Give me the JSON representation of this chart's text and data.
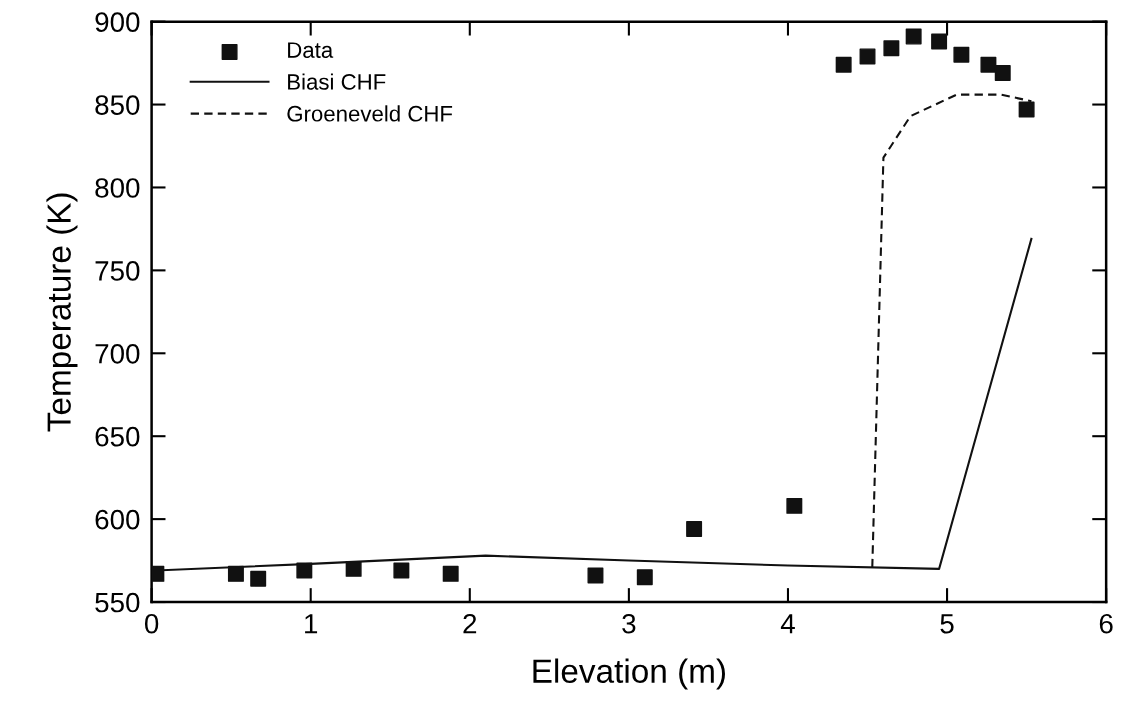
{
  "chart_data": {
    "type": "scatter",
    "xlabel": "Elevation (m)",
    "ylabel": "Temperature (K)",
    "xlim": [
      0,
      6
    ],
    "xticks": [
      0,
      1,
      2,
      3,
      4,
      5,
      6
    ],
    "ylim": [
      550,
      900
    ],
    "yticks": [
      550,
      600,
      650,
      700,
      750,
      800,
      850,
      900
    ],
    "grid": false,
    "legend": "top left",
    "series": [
      {
        "name": "Data",
        "marker": "square",
        "color": "#111111",
        "x": [
          0.03,
          0.53,
          0.67,
          0.96,
          1.27,
          1.57,
          1.88,
          2.79,
          3.1,
          3.41,
          4.04,
          4.35,
          4.5,
          4.65,
          4.79,
          4.95,
          5.09,
          5.26,
          5.35,
          5.5
        ],
        "values": [
          567,
          567,
          564,
          569,
          570,
          569,
          567,
          566,
          565,
          594,
          608,
          874,
          879,
          884,
          891,
          888,
          880,
          874,
          869,
          847
        ]
      },
      {
        "name": "Biasi CHF",
        "type": "line",
        "line_style": "solid",
        "color": "#111111",
        "x": [
          0.03,
          1,
          2.1,
          3,
          4,
          4.95,
          5.53
        ],
        "values": [
          569,
          573,
          578,
          575,
          572,
          570,
          769
        ]
      },
      {
        "name": "Groeneveld CHF",
        "type": "line",
        "line_style": "dashed",
        "color": "#111111",
        "x": [
          4.53,
          4.6,
          4.77,
          5.06,
          5.34,
          5.53
        ],
        "values": [
          571,
          818,
          843,
          856,
          856,
          852
        ]
      }
    ]
  }
}
